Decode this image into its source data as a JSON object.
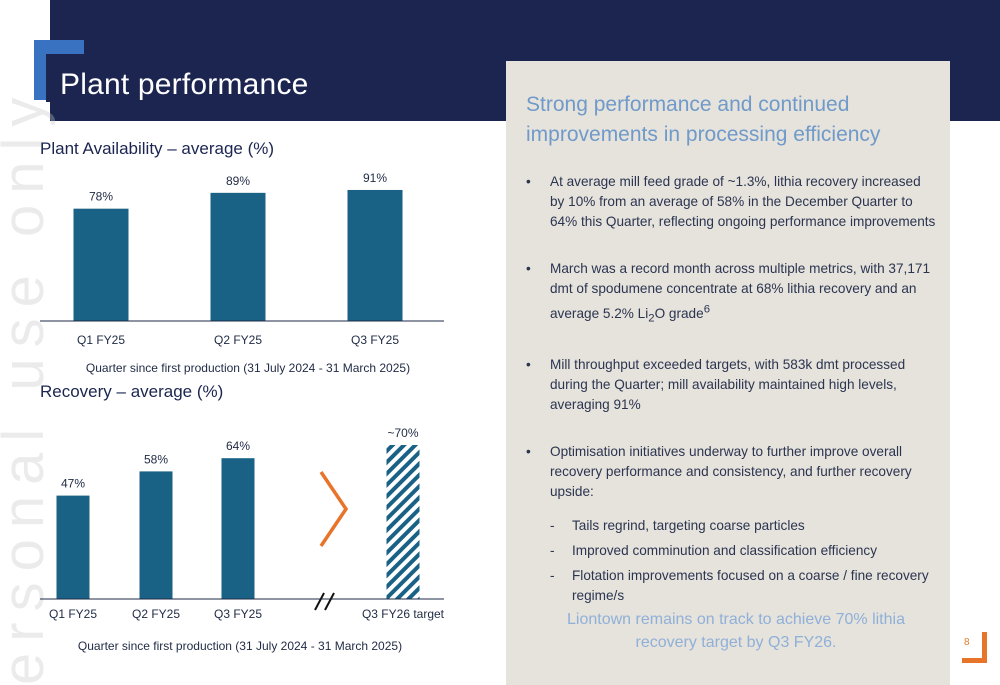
{
  "page": {
    "title": "Plant performance",
    "watermark": "ersonal use only",
    "page_number": "8"
  },
  "colors": {
    "navy": "#1b2550",
    "bar": "#1a6186",
    "accent_orange": "#e8742a",
    "accent_blue": "#3a72c2",
    "panel": "#e6e2dc"
  },
  "panel": {
    "heading": "Strong performance and continued improvements in processing efficiency",
    "bullets": [
      "At average mill feed grade of ~1.3%, lithia recovery increased by 10% from an average of 58% in the December Quarter to 64% this Quarter, reflecting ongoing performance improvements",
      "March was a record month across multiple metrics, with 37,171 dmt of spodumene concentrate at 68% lithia recovery and an average 5.2% Li2O grade6",
      "Mill throughput exceeded targets, with 583k dmt processed during the Quarter;  mill availability maintained high levels, averaging 91%",
      "Optimisation initiatives underway to further improve overall recovery performance and consistency, and further recovery upside:"
    ],
    "sub_bullets": [
      "Tails regrind, targeting coarse particles",
      "Improved comminution and classification efficiency",
      "Flotation improvements focused on a coarse / fine recovery regime/s"
    ],
    "conclusion": "Liontown remains on track to achieve 70% lithia recovery target by Q3 FY26."
  },
  "chart_data": [
    {
      "type": "bar",
      "title": "Plant Availability – average (%)",
      "xlabel": "Quarter since first production (31 July 2024 - 31 March 2025)",
      "ylabel": "",
      "categories": [
        "Q1 FY25",
        "Q2 FY25",
        "Q3 FY25"
      ],
      "values": [
        78,
        89,
        91
      ],
      "data_labels": [
        "78%",
        "89%",
        "91%"
      ],
      "grid": false
    },
    {
      "type": "bar",
      "title": "Recovery – average (%)",
      "xlabel": "Quarter since first production (31 July 2024 - 31 March 2025)",
      "ylabel": "",
      "categories": [
        "Q1 FY25",
        "Q2 FY25",
        "Q3 FY25",
        "Q3 FY26 target"
      ],
      "values": [
        47,
        58,
        64,
        70
      ],
      "data_labels": [
        "47%",
        "58%",
        "64%",
        "~70%"
      ],
      "target_category": "Q3 FY26 target",
      "grid": false
    }
  ]
}
